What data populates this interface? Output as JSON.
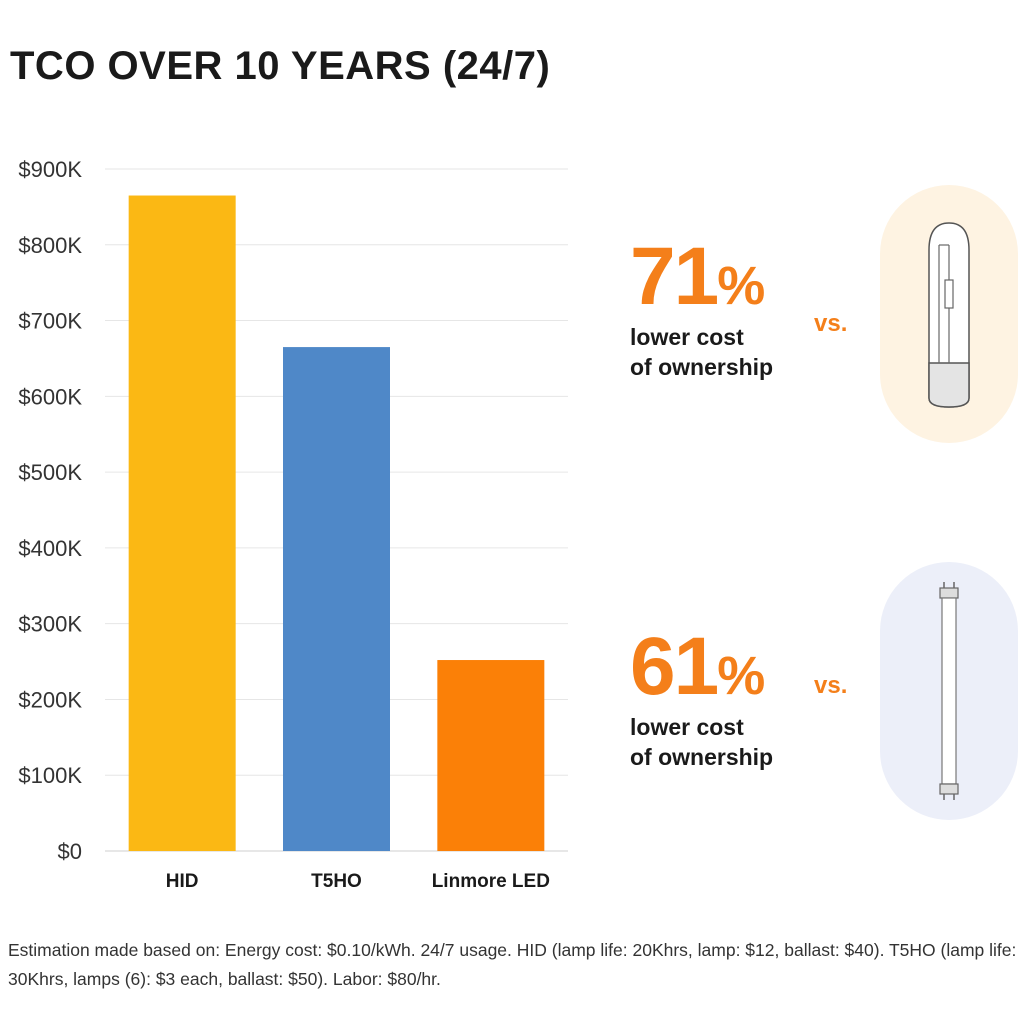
{
  "title": "TCO OVER 10 YEARS (24/7)",
  "chart_data": {
    "type": "bar",
    "title": "TCO OVER 10 YEARS (24/7)",
    "categories": [
      "HID",
      "T5HO",
      "Linmore LED"
    ],
    "values": [
      865000,
      665000,
      252000
    ],
    "colors": [
      "#fbb814",
      "#4f88c8",
      "#fb8007"
    ],
    "ylim": [
      0,
      900000
    ],
    "yticks": [
      0,
      100000,
      200000,
      300000,
      400000,
      500000,
      600000,
      700000,
      800000,
      900000
    ],
    "ytick_labels": [
      "$0",
      "$100K",
      "$200K",
      "$300K",
      "$400K",
      "$500K",
      "$600K",
      "$700K",
      "$800K",
      "$900K"
    ],
    "xlabel": "",
    "ylabel": "",
    "grid": true
  },
  "comparisons": [
    {
      "percent": "71",
      "sign": "%",
      "line1": "lower cost",
      "line2": "of ownership",
      "vs": "vs.",
      "icon": "hid-bulb-icon",
      "bubble_color": "#fef3e2"
    },
    {
      "percent": "61",
      "sign": "%",
      "line1": "lower cost",
      "line2": "of ownership",
      "vs": "vs.",
      "icon": "fluorescent-tube-icon",
      "bubble_color": "#eceff9"
    }
  ],
  "footnote": "Estimation made based on: Energy cost: $0.10/kWh. 24/7 usage. HID (lamp life: 20Khrs, lamp: $12, ballast: $40). T5HO (lamp life: 30Khrs, lamps (6): $3 each, ballast: $50). Labor: $80/hr.",
  "accent_color": "#f47f1a"
}
